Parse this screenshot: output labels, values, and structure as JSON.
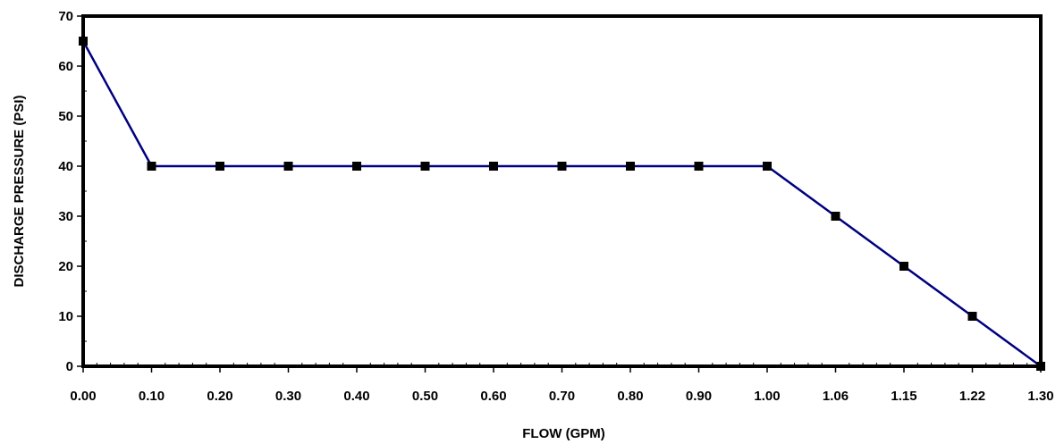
{
  "chart_data": {
    "type": "line",
    "title": "",
    "xlabel": "FLOW (GPM)",
    "ylabel": "DISCHARGE PRESSURE (PSI)",
    "categories": [
      "0.00",
      "0.10",
      "0.20",
      "0.30",
      "0.40",
      "0.50",
      "0.60",
      "0.70",
      "0.80",
      "0.90",
      "1.00",
      "1.06",
      "1.15",
      "1.22",
      "1.30"
    ],
    "series": [
      {
        "values": [
          65,
          40,
          40,
          40,
          40,
          40,
          40,
          40,
          40,
          40,
          40,
          30,
          20,
          10,
          0
        ]
      }
    ],
    "ylim": [
      0,
      70
    ],
    "yticks": [
      "0",
      "10",
      "20",
      "30",
      "40",
      "50",
      "60",
      "70"
    ],
    "x_axis_type": "category",
    "grid": false,
    "legend": "none",
    "colors": {
      "line": "#000080",
      "marker": "#000000",
      "frame": "#000000"
    },
    "marker": "square"
  }
}
